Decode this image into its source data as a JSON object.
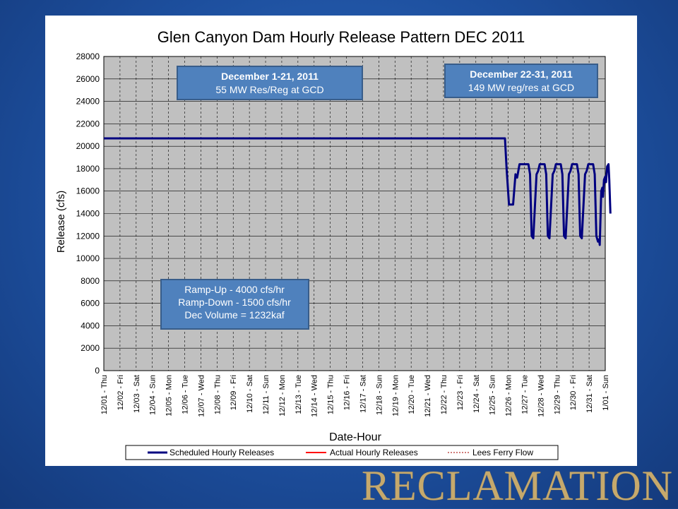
{
  "brand": {
    "wordmark": "RECLAMATION",
    "color": "#c6a96c"
  },
  "colors": {
    "background": "#1d4f9e",
    "plot_area": "#c0c0c0",
    "annotation_fill": "#4f81bd",
    "annotation_border": "#385d8a",
    "scheduled": "#000080",
    "actual": "#ff0000",
    "lees_ferry": "#c0504d"
  },
  "annotations": {
    "box1": {
      "line1": "December 1-21, 2011",
      "line2": "55 MW Res/Reg at GCD"
    },
    "box2": {
      "line1": "December 22-31, 2011",
      "line2": "149 MW reg/res at GCD"
    },
    "box3": {
      "line1": "Ramp-Up - 4000 cfs/hr",
      "line2": "Ramp-Down - 1500 cfs/hr",
      "line3": "Dec Volume = 1232kaf"
    }
  },
  "legend": {
    "position": "bottom",
    "items": [
      "Scheduled Hourly Releases",
      "Actual Hourly Releases",
      "Lees Ferry Flow"
    ]
  },
  "chart_data": {
    "type": "line",
    "title": "Glen Canyon Dam Hourly Release Pattern DEC 2011",
    "xlabel": "Date-Hour",
    "ylabel": "Release  (cfs)",
    "ylim": [
      0,
      28000
    ],
    "yticks": [
      0,
      2000,
      4000,
      6000,
      8000,
      10000,
      12000,
      14000,
      16000,
      18000,
      20000,
      22000,
      24000,
      26000,
      28000
    ],
    "grid": true,
    "x_categories": [
      "12/01 - Thu",
      "12/02 - Fri",
      "12/03 - Sat",
      "12/04 - Sun",
      "12/05 - Mon",
      "12/06 - Tue",
      "12/07 - Wed",
      "12/08 - Thu",
      "12/09 - Fri",
      "12/10 - Sat",
      "12/11 - Sun",
      "12/12 - Mon",
      "12/13 - Tue",
      "12/14 - Wed",
      "12/15 - Thu",
      "12/16 - Fri",
      "12/17 - Sat",
      "12/18 - Sun",
      "12/19 - Mon",
      "12/20 - Tue",
      "12/21 - Wed",
      "12/22 - Thu",
      "12/23 - Fri",
      "12/24 - Sat",
      "12/25 - Sun",
      "12/26 - Mon",
      "12/27 - Tue",
      "12/28 - Wed",
      "12/29 - Thu",
      "12/30 - Fri",
      "12/31 - Sat",
      "1/01 - Sun"
    ],
    "series": [
      {
        "name": "Scheduled Hourly Releases",
        "x_unit": "days since 12/01 00:00",
        "points": [
          [
            0,
            20700
          ],
          [
            24.8,
            20700
          ],
          [
            24.9,
            18000
          ],
          [
            25.05,
            14800
          ],
          [
            25.3,
            14800
          ],
          [
            25.45,
            17500
          ],
          [
            25.55,
            17200
          ],
          [
            25.7,
            18400
          ],
          [
            26.25,
            18400
          ],
          [
            26.35,
            17500
          ],
          [
            26.45,
            12000
          ],
          [
            26.55,
            11800
          ],
          [
            26.75,
            17500
          ],
          [
            26.85,
            17800
          ],
          [
            26.95,
            18400
          ],
          [
            27.25,
            18400
          ],
          [
            27.35,
            17500
          ],
          [
            27.45,
            12000
          ],
          [
            27.55,
            11800
          ],
          [
            27.75,
            17500
          ],
          [
            27.85,
            17800
          ],
          [
            27.95,
            18400
          ],
          [
            28.25,
            18400
          ],
          [
            28.35,
            17500
          ],
          [
            28.45,
            12000
          ],
          [
            28.55,
            11800
          ],
          [
            28.75,
            17500
          ],
          [
            28.85,
            17800
          ],
          [
            28.95,
            18400
          ],
          [
            29.25,
            18400
          ],
          [
            29.35,
            17500
          ],
          [
            29.45,
            12000
          ],
          [
            29.55,
            11800
          ],
          [
            29.75,
            17500
          ],
          [
            29.85,
            17800
          ],
          [
            29.95,
            18400
          ],
          [
            30.25,
            18400
          ],
          [
            30.35,
            17500
          ],
          [
            30.45,
            12000
          ],
          [
            30.55,
            11500
          ],
          [
            30.62,
            11700
          ],
          [
            30.66,
            11200
          ],
          [
            30.75,
            16000
          ],
          [
            30.82,
            16300
          ],
          [
            30.86,
            15500
          ],
          [
            30.92,
            17000
          ],
          [
            31.0,
            17300
          ],
          [
            31.05,
            16800
          ],
          [
            31.12,
            18200
          ],
          [
            31.2,
            18400
          ],
          [
            31.25,
            17000
          ],
          [
            31.32,
            14000
          ]
        ]
      }
    ]
  }
}
